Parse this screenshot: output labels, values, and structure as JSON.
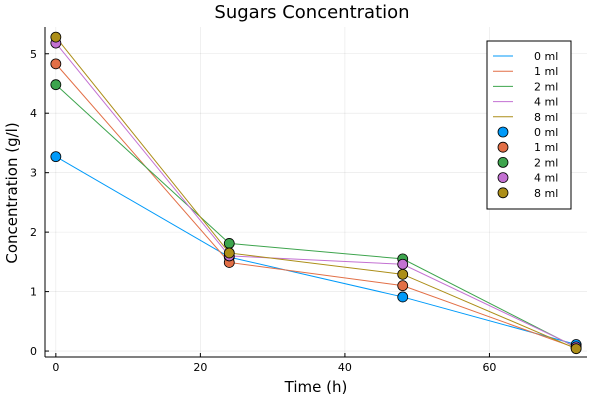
{
  "chart_data": {
    "type": "line",
    "title": "Sugars Concentration",
    "xlabel": "Time (h)",
    "ylabel": "Concentration (g/l)",
    "xlim": [
      -1.5,
      73.5
    ],
    "ylim": [
      -0.1,
      5.45
    ],
    "xticks": [
      0,
      20,
      40,
      60
    ],
    "yticks": [
      0,
      1,
      2,
      3,
      4,
      5
    ],
    "grid": true,
    "legend_position": "top-right",
    "x": [
      0,
      24,
      48,
      72
    ],
    "series": [
      {
        "name": "0 ml",
        "color": "#009af9",
        "values": [
          3.27,
          1.58,
          0.91,
          0.11
        ]
      },
      {
        "name": "1 ml",
        "color": "#e26f46",
        "values": [
          4.83,
          1.49,
          1.1,
          0.05
        ]
      },
      {
        "name": "2 ml",
        "color": "#3da44d",
        "values": [
          4.48,
          1.81,
          1.55,
          0.06
        ]
      },
      {
        "name": "4 ml",
        "color": "#c371d2",
        "values": [
          5.18,
          1.6,
          1.46,
          0.07
        ]
      },
      {
        "name": "8 ml",
        "color": "#ac8e18",
        "values": [
          5.28,
          1.65,
          1.29,
          0.04
        ]
      }
    ]
  }
}
